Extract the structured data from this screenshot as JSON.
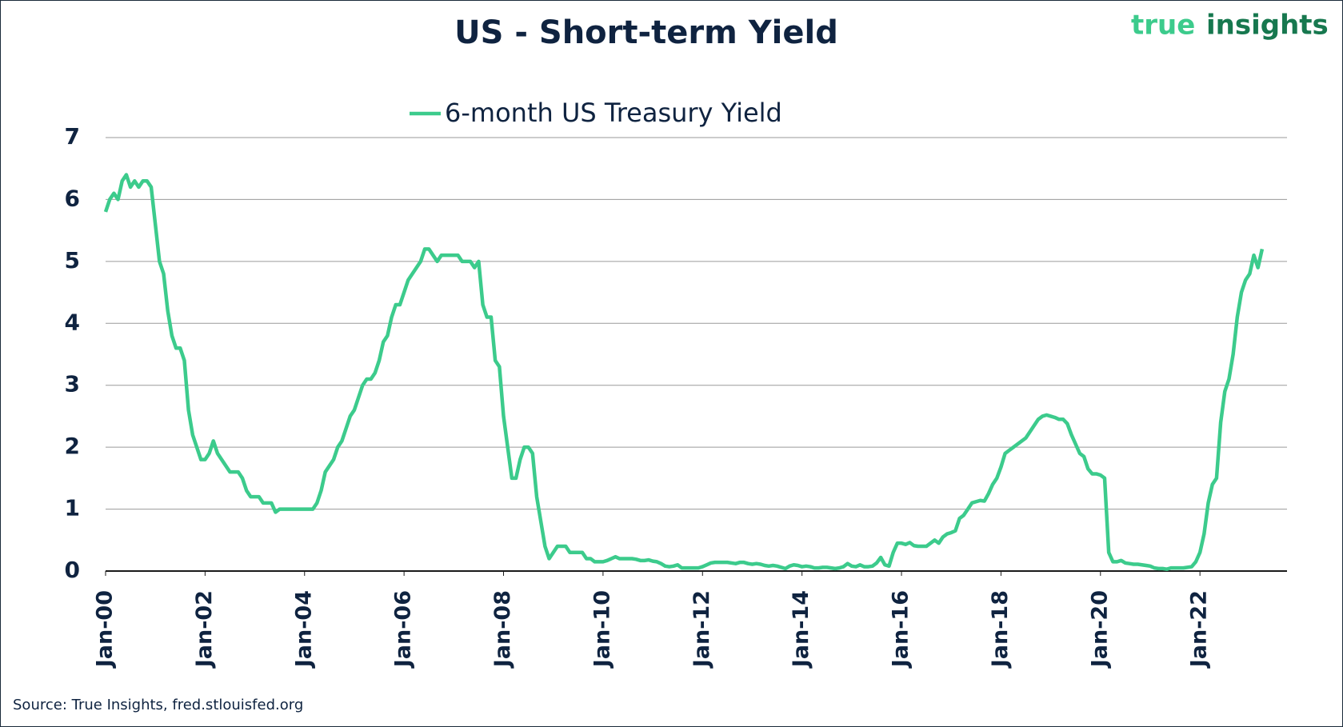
{
  "brand": {
    "first": "true",
    "second": "insights"
  },
  "chart_data": {
    "type": "line",
    "title": "US - Short-term Yield",
    "source": "Source: True Insights, fred.stlouisfed.org",
    "legend": "top",
    "grid": true,
    "x": [
      "2000-01",
      "2000-02",
      "2000-03",
      "2000-04",
      "2000-05",
      "2000-06",
      "2000-07",
      "2000-08",
      "2000-09",
      "2000-10",
      "2000-11",
      "2000-12",
      "2001-01",
      "2001-02",
      "2001-03",
      "2001-04",
      "2001-05",
      "2001-06",
      "2001-07",
      "2001-08",
      "2001-09",
      "2001-10",
      "2001-11",
      "2001-12",
      "2002-01",
      "2002-02",
      "2002-03",
      "2002-04",
      "2002-05",
      "2002-06",
      "2002-07",
      "2002-08",
      "2002-09",
      "2002-10",
      "2002-11",
      "2002-12",
      "2003-01",
      "2003-02",
      "2003-03",
      "2003-04",
      "2003-05",
      "2003-06",
      "2003-07",
      "2003-08",
      "2003-09",
      "2003-10",
      "2003-11",
      "2003-12",
      "2004-01",
      "2004-02",
      "2004-03",
      "2004-04",
      "2004-05",
      "2004-06",
      "2004-07",
      "2004-08",
      "2004-09",
      "2004-10",
      "2004-11",
      "2004-12",
      "2005-01",
      "2005-02",
      "2005-03",
      "2005-04",
      "2005-05",
      "2005-06",
      "2005-07",
      "2005-08",
      "2005-09",
      "2005-10",
      "2005-11",
      "2005-12",
      "2006-01",
      "2006-02",
      "2006-03",
      "2006-04",
      "2006-05",
      "2006-06",
      "2006-07",
      "2006-08",
      "2006-09",
      "2006-10",
      "2006-11",
      "2006-12",
      "2007-01",
      "2007-02",
      "2007-03",
      "2007-04",
      "2007-05",
      "2007-06",
      "2007-07",
      "2007-08",
      "2007-09",
      "2007-10",
      "2007-11",
      "2007-12",
      "2008-01",
      "2008-02",
      "2008-03",
      "2008-04",
      "2008-05",
      "2008-06",
      "2008-07",
      "2008-08",
      "2008-09",
      "2008-10",
      "2008-11",
      "2008-12",
      "2009-01",
      "2009-02",
      "2009-03",
      "2009-04",
      "2009-05",
      "2009-06",
      "2009-07",
      "2009-08",
      "2009-09",
      "2009-10",
      "2009-11",
      "2009-12",
      "2010-01",
      "2010-02",
      "2010-03",
      "2010-04",
      "2010-05",
      "2010-06",
      "2010-07",
      "2010-08",
      "2010-09",
      "2010-10",
      "2010-11",
      "2010-12",
      "2011-01",
      "2011-02",
      "2011-03",
      "2011-04",
      "2011-05",
      "2011-06",
      "2011-07",
      "2011-08",
      "2011-09",
      "2011-10",
      "2011-11",
      "2011-12",
      "2012-01",
      "2012-02",
      "2012-03",
      "2012-04",
      "2012-05",
      "2012-06",
      "2012-07",
      "2012-08",
      "2012-09",
      "2012-10",
      "2012-11",
      "2012-12",
      "2013-01",
      "2013-02",
      "2013-03",
      "2013-04",
      "2013-05",
      "2013-06",
      "2013-07",
      "2013-08",
      "2013-09",
      "2013-10",
      "2013-11",
      "2013-12",
      "2014-01",
      "2014-02",
      "2014-03",
      "2014-04",
      "2014-05",
      "2014-06",
      "2014-07",
      "2014-08",
      "2014-09",
      "2014-10",
      "2014-11",
      "2014-12",
      "2015-01",
      "2015-02",
      "2015-03",
      "2015-04",
      "2015-05",
      "2015-06",
      "2015-07",
      "2015-08",
      "2015-09",
      "2015-10",
      "2015-11",
      "2015-12",
      "2016-01",
      "2016-02",
      "2016-03",
      "2016-04",
      "2016-05",
      "2016-06",
      "2016-07",
      "2016-08",
      "2016-09",
      "2016-10",
      "2016-11",
      "2016-12",
      "2017-01",
      "2017-02",
      "2017-03",
      "2017-04",
      "2017-05",
      "2017-06",
      "2017-07",
      "2017-08",
      "2017-09",
      "2017-10",
      "2017-11",
      "2017-12",
      "2018-01",
      "2018-02",
      "2018-03",
      "2018-04",
      "2018-05",
      "2018-06",
      "2018-07",
      "2018-08",
      "2018-09",
      "2018-10",
      "2018-11",
      "2018-12",
      "2019-01",
      "2019-02",
      "2019-03",
      "2019-04",
      "2019-05",
      "2019-06",
      "2019-07",
      "2019-08",
      "2019-09",
      "2019-10",
      "2019-11",
      "2019-12",
      "2020-01",
      "2020-02",
      "2020-03",
      "2020-04",
      "2020-05",
      "2020-06",
      "2020-07",
      "2020-08",
      "2020-09",
      "2020-10",
      "2020-11",
      "2020-12",
      "2021-01",
      "2021-02",
      "2021-03",
      "2021-04",
      "2021-05",
      "2021-06",
      "2021-07",
      "2021-08",
      "2021-09",
      "2021-10",
      "2021-11",
      "2021-12",
      "2022-01",
      "2022-02",
      "2022-03",
      "2022-04",
      "2022-05",
      "2022-06",
      "2022-07",
      "2022-08",
      "2022-09",
      "2022-10",
      "2022-11",
      "2022-12",
      "2023-01",
      "2023-02",
      "2023-03",
      "2023-04"
    ],
    "series": [
      {
        "name": "6-month US Treasury Yield",
        "color": "#3ccb8c",
        "values": [
          5.8,
          6.0,
          6.1,
          6.0,
          6.3,
          6.4,
          6.2,
          6.3,
          6.2,
          6.3,
          6.3,
          6.2,
          5.6,
          5.0,
          4.8,
          4.2,
          3.8,
          3.6,
          3.6,
          3.4,
          2.6,
          2.2,
          2.0,
          1.8,
          1.8,
          1.9,
          2.1,
          1.9,
          1.8,
          1.7,
          1.6,
          1.6,
          1.6,
          1.5,
          1.3,
          1.2,
          1.2,
          1.2,
          1.1,
          1.1,
          1.1,
          0.95,
          1.0,
          1.0,
          1.0,
          1.0,
          1.0,
          1.0,
          1.0,
          1.0,
          1.0,
          1.1,
          1.3,
          1.6,
          1.7,
          1.8,
          2.0,
          2.1,
          2.3,
          2.5,
          2.6,
          2.8,
          3.0,
          3.1,
          3.1,
          3.2,
          3.4,
          3.7,
          3.8,
          4.1,
          4.3,
          4.3,
          4.5,
          4.7,
          4.8,
          4.9,
          5.0,
          5.2,
          5.2,
          5.1,
          5.0,
          5.1,
          5.1,
          5.1,
          5.1,
          5.1,
          5.0,
          5.0,
          5.0,
          4.9,
          5.0,
          4.3,
          4.1,
          4.1,
          3.4,
          3.3,
          2.5,
          2.0,
          1.5,
          1.5,
          1.8,
          2.0,
          2.0,
          1.9,
          1.2,
          0.8,
          0.4,
          0.2,
          0.3,
          0.4,
          0.4,
          0.4,
          0.3,
          0.3,
          0.3,
          0.3,
          0.2,
          0.2,
          0.15,
          0.15,
          0.15,
          0.17,
          0.2,
          0.23,
          0.2,
          0.2,
          0.2,
          0.2,
          0.19,
          0.17,
          0.17,
          0.18,
          0.16,
          0.15,
          0.12,
          0.08,
          0.07,
          0.08,
          0.1,
          0.05,
          0.05,
          0.05,
          0.05,
          0.05,
          0.07,
          0.1,
          0.13,
          0.14,
          0.14,
          0.14,
          0.14,
          0.13,
          0.12,
          0.14,
          0.14,
          0.12,
          0.11,
          0.12,
          0.11,
          0.09,
          0.08,
          0.09,
          0.08,
          0.06,
          0.04,
          0.08,
          0.1,
          0.09,
          0.07,
          0.08,
          0.07,
          0.05,
          0.05,
          0.06,
          0.06,
          0.05,
          0.04,
          0.05,
          0.07,
          0.12,
          0.08,
          0.07,
          0.1,
          0.07,
          0.07,
          0.08,
          0.13,
          0.22,
          0.1,
          0.08,
          0.3,
          0.45,
          0.45,
          0.43,
          0.46,
          0.41,
          0.4,
          0.4,
          0.4,
          0.45,
          0.5,
          0.45,
          0.55,
          0.6,
          0.62,
          0.65,
          0.85,
          0.9,
          1.0,
          1.1,
          1.12,
          1.14,
          1.13,
          1.25,
          1.4,
          1.5,
          1.68,
          1.9,
          1.95,
          2.0,
          2.05,
          2.1,
          2.15,
          2.25,
          2.35,
          2.45,
          2.5,
          2.52,
          2.5,
          2.48,
          2.45,
          2.45,
          2.38,
          2.2,
          2.05,
          1.9,
          1.85,
          1.65,
          1.57,
          1.57,
          1.55,
          1.5,
          0.3,
          0.15,
          0.15,
          0.17,
          0.13,
          0.12,
          0.11,
          0.11,
          0.1,
          0.09,
          0.08,
          0.05,
          0.04,
          0.04,
          0.03,
          0.05,
          0.05,
          0.05,
          0.05,
          0.06,
          0.07,
          0.15,
          0.3,
          0.6,
          1.1,
          1.4,
          1.5,
          2.4,
          2.9,
          3.1,
          3.5,
          4.1,
          4.5,
          4.7,
          4.8,
          5.1,
          4.9,
          5.2
        ]
      }
    ],
    "xlim": [
      "2000-01",
      "2023-10"
    ],
    "xticks": [
      {
        "value": "2000-01",
        "label": "Jan-00"
      },
      {
        "value": "2002-01",
        "label": "Jan-02"
      },
      {
        "value": "2004-01",
        "label": "Jan-04"
      },
      {
        "value": "2006-01",
        "label": "Jan-06"
      },
      {
        "value": "2008-01",
        "label": "Jan-08"
      },
      {
        "value": "2010-01",
        "label": "Jan-10"
      },
      {
        "value": "2012-01",
        "label": "Jan-12"
      },
      {
        "value": "2014-01",
        "label": "Jan-14"
      },
      {
        "value": "2016-01",
        "label": "Jan-16"
      },
      {
        "value": "2018-01",
        "label": "Jan-18"
      },
      {
        "value": "2020-01",
        "label": "Jan-20"
      },
      {
        "value": "2022-01",
        "label": "Jan-22"
      }
    ],
    "ylim": [
      0,
      7
    ],
    "yticks": [
      0,
      1,
      2,
      3,
      4,
      5,
      6,
      7
    ]
  }
}
